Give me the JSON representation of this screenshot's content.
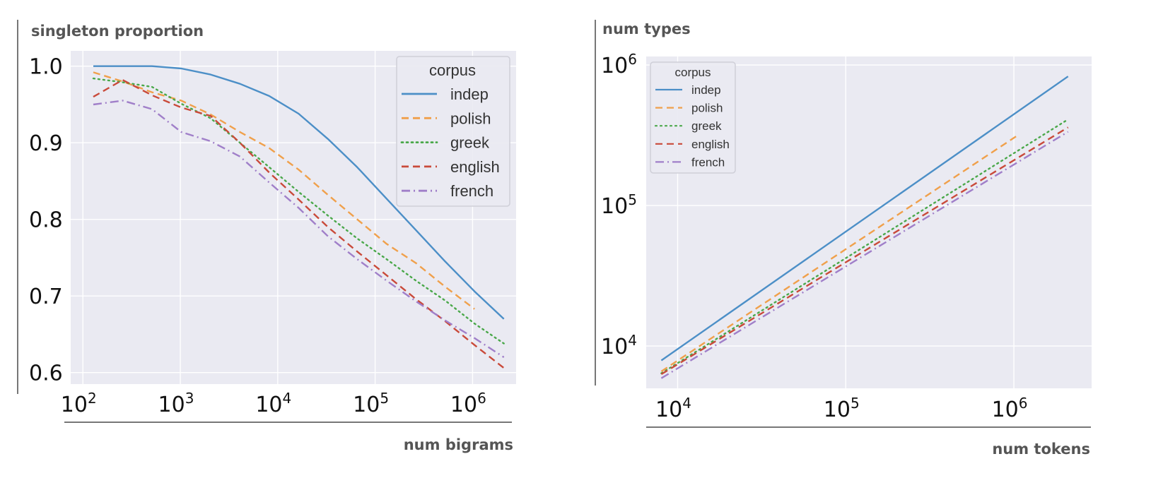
{
  "chart_data": [
    {
      "type": "line",
      "ylabel": "singleton proportion",
      "xlabel": "num bigrams",
      "x_scale": "log",
      "y_scale": "linear",
      "xlim": [
        75,
        2800000
      ],
      "ylim": [
        0.585,
        1.02
      ],
      "grid": true,
      "x_ticks": [
        {
          "base": "10",
          "exp": "2"
        },
        {
          "base": "10",
          "exp": "3"
        },
        {
          "base": "10",
          "exp": "4"
        },
        {
          "base": "10",
          "exp": "5"
        },
        {
          "base": "10",
          "exp": "6"
        }
      ],
      "x_tick_values": [
        100,
        1000,
        10000,
        100000,
        1000000
      ],
      "y_ticks": [
        "1.0",
        "0.9",
        "0.8",
        "0.7",
        "0.6"
      ],
      "y_tick_values": [
        1.0,
        0.9,
        0.8,
        0.7,
        0.6
      ],
      "legend": {
        "title": "corpus",
        "position": "top-right"
      },
      "series": [
        {
          "name": "indep",
          "color": "#4c8fc7",
          "dash": "solid",
          "x": [
            128,
            256,
            512,
            1024,
            2048,
            4096,
            8192,
            16384,
            32768,
            65536,
            131072,
            262144,
            524288,
            1048576,
            2097152
          ],
          "y": [
            1.0,
            1.0,
            1.0,
            0.997,
            0.989,
            0.977,
            0.961,
            0.938,
            0.905,
            0.868,
            0.827,
            0.786,
            0.745,
            0.706,
            0.67
          ]
        },
        {
          "name": "polish",
          "color": "#f0a04b",
          "dash": "dashed",
          "x": [
            128,
            256,
            512,
            1024,
            2048,
            4096,
            8192,
            16384,
            32768,
            65536,
            131072,
            262144,
            524288,
            1048576
          ],
          "y": [
            0.992,
            0.98,
            0.966,
            0.955,
            0.937,
            0.914,
            0.893,
            0.865,
            0.832,
            0.8,
            0.768,
            0.743,
            0.712,
            0.683
          ]
        },
        {
          "name": "greek",
          "color": "#4aa84a",
          "dash": "dotted",
          "x": [
            128,
            256,
            512,
            1024,
            2048,
            4096,
            8192,
            16384,
            32768,
            65536,
            131072,
            262144,
            524288,
            1048576,
            2097152
          ],
          "y": [
            0.984,
            0.979,
            0.973,
            0.951,
            0.932,
            0.9,
            0.868,
            0.836,
            0.805,
            0.775,
            0.748,
            0.72,
            0.694,
            0.664,
            0.638
          ]
        },
        {
          "name": "english",
          "color": "#c94a3a",
          "dash": "dashed",
          "x": [
            128,
            256,
            512,
            1024,
            2048,
            4096,
            8192,
            16384,
            32768,
            65536,
            131072,
            262144,
            524288,
            1048576,
            2097152
          ],
          "y": [
            0.96,
            0.982,
            0.962,
            0.946,
            0.935,
            0.9,
            0.861,
            0.826,
            0.79,
            0.758,
            0.727,
            0.696,
            0.667,
            0.636,
            0.606
          ]
        },
        {
          "name": "french",
          "color": "#a07fc9",
          "dash": "dashdot",
          "x": [
            128,
            256,
            512,
            1024,
            2048,
            4096,
            8192,
            16384,
            32768,
            65536,
            131072,
            262144,
            524288,
            1048576,
            2097152
          ],
          "y": [
            0.95,
            0.955,
            0.944,
            0.914,
            0.902,
            0.882,
            0.848,
            0.815,
            0.778,
            0.748,
            0.72,
            0.693,
            0.668,
            0.645,
            0.62
          ]
        }
      ]
    },
    {
      "type": "line",
      "ylabel": "num types",
      "xlabel": "num tokens",
      "x_scale": "log",
      "y_scale": "log",
      "xlim": [
        6500,
        2900000
      ],
      "ylim": [
        5000,
        1150000
      ],
      "grid": true,
      "x_ticks": [
        {
          "base": "10",
          "exp": "4"
        },
        {
          "base": "10",
          "exp": "5"
        },
        {
          "base": "10",
          "exp": "6"
        }
      ],
      "x_tick_values": [
        10000,
        100000,
        1000000
      ],
      "y_ticks": [
        {
          "base": "10",
          "exp": "6"
        },
        {
          "base": "10",
          "exp": "5"
        },
        {
          "base": "10",
          "exp": "4"
        }
      ],
      "y_tick_values": [
        1000000,
        100000,
        10000
      ],
      "legend": {
        "title": "corpus",
        "position": "top-left"
      },
      "series": [
        {
          "name": "indep",
          "color": "#4c8fc7",
          "dash": "solid",
          "x": [
            8000,
            2100000
          ],
          "y": [
            7900,
            830000
          ]
        },
        {
          "name": "polish",
          "color": "#f0a04b",
          "dash": "dashed",
          "x": [
            8000,
            1050000
          ],
          "y": [
            6600,
            315000
          ]
        },
        {
          "name": "greek",
          "color": "#4aa84a",
          "dash": "dotted",
          "x": [
            8000,
            2100000
          ],
          "y": [
            6400,
            410000
          ]
        },
        {
          "name": "english",
          "color": "#c94a3a",
          "dash": "dashed",
          "x": [
            8000,
            2100000
          ],
          "y": [
            6300,
            360000
          ]
        },
        {
          "name": "french",
          "color": "#a07fc9",
          "dash": "dashdot",
          "x": [
            8000,
            2100000
          ],
          "y": [
            5900,
            335000
          ]
        }
      ]
    }
  ]
}
